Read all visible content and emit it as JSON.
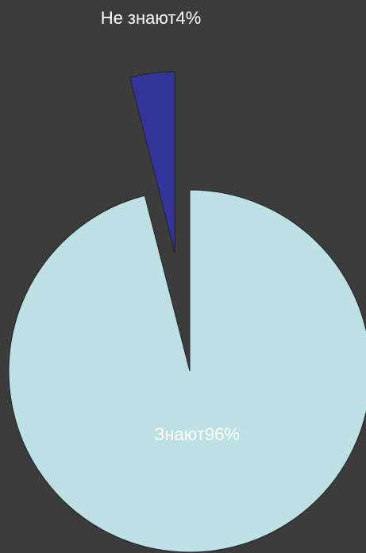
{
  "chart_data": {
    "type": "pie",
    "categories": [
      "Знают",
      "Не знают"
    ],
    "values": [
      96,
      4
    ],
    "value_labels": [
      "96%",
      "4%"
    ],
    "colors": [
      "#bde0e4",
      "#333399"
    ]
  }
}
